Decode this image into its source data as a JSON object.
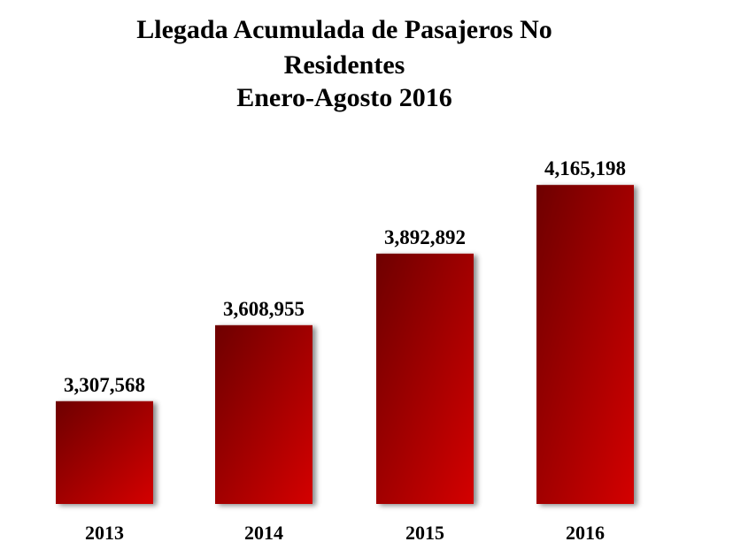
{
  "chart_data": {
    "type": "bar",
    "title_lines": [
      "Llegada Acumulada de Pasajeros No",
      "Residentes",
      "Enero-Agosto 2016"
    ],
    "categories": [
      "2013",
      "2014",
      "2015",
      "2016"
    ],
    "values": [
      3307568,
      3608955,
      3892892,
      4165198
    ],
    "data_labels": [
      "3,307,568",
      "3,608,955",
      "3,892,892",
      "4,165,198"
    ],
    "xlabel": "",
    "ylabel": "",
    "ylim": [
      2900000,
      4250000
    ],
    "grid": false,
    "legend": "none",
    "colors": {
      "bar_dark": "#6e0000",
      "bar_light": "#d40000",
      "text": "#000000"
    }
  }
}
